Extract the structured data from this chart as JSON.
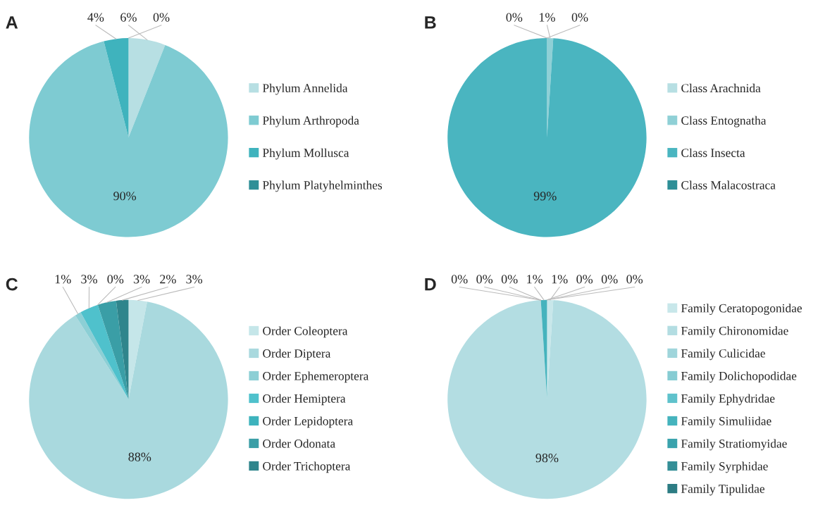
{
  "chart_data": [
    {
      "type": "pie",
      "title": "A",
      "categories": [
        "Phylum Annelida",
        "Phylum Arthropoda",
        "Phylum Mollusca",
        "Phylum Platyhelminthes"
      ],
      "values": [
        6,
        90,
        4,
        0
      ],
      "value_labels": [
        "6%",
        "90%",
        "4%",
        "0%"
      ],
      "colors": [
        "#b7dfe3",
        "#7ecbd2",
        "#3fb3bd",
        "#2e8f97"
      ],
      "legend": "right"
    },
    {
      "type": "pie",
      "title": "B",
      "categories": [
        "Class Arachnida",
        "Class Entognatha",
        "Class Insecta",
        "Class Malacostraca"
      ],
      "values": [
        0,
        1,
        99,
        0
      ],
      "value_labels": [
        "0%",
        "1%",
        "99%",
        "0%"
      ],
      "colors": [
        "#b7dfe3",
        "#8fd0d6",
        "#4ab5c0",
        "#2e8f97"
      ],
      "legend": "right"
    },
    {
      "type": "pie",
      "title": "C",
      "categories": [
        "Order Coleoptera",
        "Order Diptera",
        "Order Ephemeroptera",
        "Order Hemiptera",
        "Order Lepidoptera",
        "Order Odonata",
        "Order Trichoptera"
      ],
      "values": [
        3,
        88,
        1,
        3,
        0,
        3,
        2
      ],
      "value_labels": [
        "3%",
        "88%",
        "1%",
        "3%",
        "0%",
        "3%",
        "2%"
      ],
      "colors": [
        "#c5e6e9",
        "#a9d9de",
        "#8ccfd5",
        "#4fc1cc",
        "#3db3bd",
        "#3a9ea6",
        "#2f858c"
      ],
      "legend": "right"
    },
    {
      "type": "pie",
      "title": "D",
      "categories": [
        "Family Ceratopogonidae",
        "Family Chironomidae",
        "Family Culicidae",
        "Family Dolichopodidae",
        "Family Ephydridae",
        "Family Simuliidae",
        "Family Stratiomyidae",
        "Family Syrphidae",
        "Family Tipulidae"
      ],
      "values": [
        1,
        98,
        0,
        0,
        0,
        1,
        0,
        0,
        0
      ],
      "value_labels": [
        "1%",
        "98%",
        "0%",
        "0%",
        "0%",
        "1%",
        "0%",
        "0%",
        "0%"
      ],
      "colors": [
        "#c8e7ea",
        "#b3dde2",
        "#9fd5db",
        "#86ccd3",
        "#5fc2cc",
        "#45b3bd",
        "#3aa3ad",
        "#348f97",
        "#2c7c83"
      ],
      "legend": "right"
    }
  ]
}
